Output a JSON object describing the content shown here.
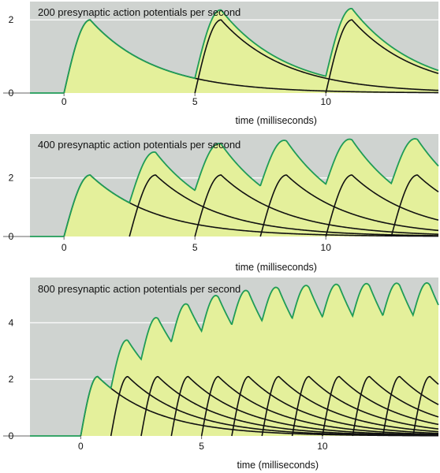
{
  "colors": {
    "plot_background": "#cfd3d0",
    "fill": "#e4f09b",
    "summed_line": "#1f9c57",
    "individual_line": "#111111",
    "baseline_line": "#1f9c57",
    "axis": "#666666"
  },
  "chart_data": [
    {
      "type": "line",
      "title": "200 presynaptic action potentials per second",
      "xlabel": "time (milliseconds)",
      "ylabel": "",
      "x_ticks": [
        "0",
        "5",
        "10"
      ],
      "y_ticks": [
        "0",
        "2"
      ],
      "xlim": [
        -1.3,
        14.3
      ],
      "ylim": [
        0,
        2.5
      ],
      "grid": true,
      "pulse_onsets_ms": [
        0,
        5,
        10
      ],
      "single_response": {
        "peak_value": 2.0,
        "time_to_peak_ms": 1.0,
        "decay_time_constant_ms": 2.5
      },
      "series": [
        {
          "values": [
            [
              0,
              0
            ],
            [
              1,
              2.0
            ],
            [
              5,
              0.4
            ],
            [
              6,
              2.38
            ],
            [
              10,
              0.48
            ],
            [
              11,
              2.4
            ],
            [
              14.3,
              0.42
            ]
          ]
        }
      ]
    },
    {
      "type": "line",
      "title": "400 presynaptic action potentials per second",
      "xlabel": "time (milliseconds)",
      "ylabel": "",
      "x_ticks": [
        "0",
        "5",
        "10"
      ],
      "y_ticks": [
        "0",
        "2"
      ],
      "xlim": [
        -1.3,
        14.3
      ],
      "ylim": [
        0,
        3.5
      ],
      "grid": true,
      "pulse_onsets_ms": [
        0,
        2.5,
        5,
        7.5,
        10,
        12.5
      ],
      "single_response": {
        "peak_value": 2.1,
        "time_to_peak_ms": 1.0,
        "decay_time_constant_ms": 2.5
      },
      "series": [
        {
          "values": [
            [
              0,
              0
            ],
            [
              1,
              2.1
            ],
            [
              2.5,
              1.2
            ],
            [
              3.5,
              2.9
            ],
            [
              5,
              1.6
            ],
            [
              6,
              3.1
            ],
            [
              7.5,
              1.7
            ],
            [
              8.5,
              3.15
            ],
            [
              10,
              1.7
            ],
            [
              11,
              3.15
            ],
            [
              12.5,
              1.7
            ],
            [
              13.5,
              3.15
            ]
          ]
        }
      ]
    },
    {
      "type": "line",
      "title": "800 presynaptic action potentials per second",
      "xlabel": "time (milliseconds)",
      "ylabel": "",
      "x_ticks": [
        "0",
        "5",
        "10"
      ],
      "y_ticks": [
        "0",
        "2",
        "4"
      ],
      "xlim": [
        -2.1,
        14.8
      ],
      "ylim": [
        0,
        5.6
      ],
      "grid": true,
      "pulse_onsets_ms": [
        0,
        1.25,
        2.5,
        3.75,
        5,
        6.25,
        7.5,
        8.75,
        10,
        11.25,
        12.5,
        13.75
      ],
      "single_response": {
        "peak_value": 2.1,
        "time_to_peak_ms": 0.7,
        "decay_time_constant_ms": 2.5
      },
      "series": [
        {
          "values": [
            [
              0,
              0
            ],
            [
              0.7,
              2.1
            ],
            [
              1.25,
              1.9
            ],
            [
              2,
              3.3
            ],
            [
              2.5,
              3.1
            ],
            [
              3.2,
              4.0
            ],
            [
              5,
              4.5
            ],
            [
              7.5,
              4.7
            ],
            [
              10,
              4.8
            ],
            [
              12.5,
              4.8
            ],
            [
              14.8,
              4.8
            ]
          ]
        }
      ]
    }
  ]
}
